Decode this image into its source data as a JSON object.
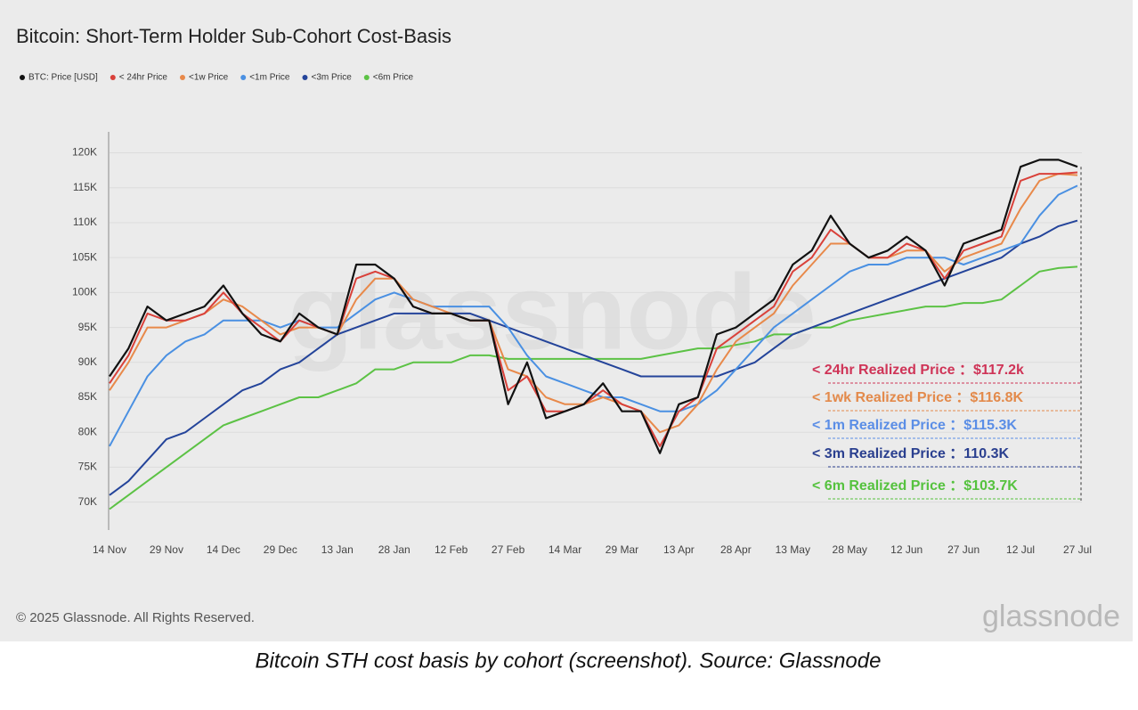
{
  "chart_data": {
    "type": "line",
    "title": "Bitcoin: Short-Term Holder Sub-Cohort Cost-Basis",
    "categories": [
      "14 Nov",
      null,
      null,
      "29 Nov",
      null,
      null,
      "14 Dec",
      null,
      null,
      "29 Dec",
      null,
      null,
      "13 Jan",
      null,
      null,
      "28 Jan",
      null,
      null,
      "12 Feb",
      null,
      null,
      "27 Feb",
      null,
      null,
      "14 Mar",
      null,
      null,
      "29 Mar",
      null,
      null,
      "13 Apr",
      null,
      null,
      "28 Apr",
      null,
      null,
      "13 May",
      null,
      null,
      "28 May",
      null,
      null,
      "12 Jun",
      null,
      null,
      "27 Jun",
      null,
      null,
      "12 Jul",
      null,
      null,
      "27 Jul"
    ],
    "series": [
      {
        "name": "BTC: Price [USD]",
        "color": "#111111",
        "values": [
          88000,
          92000,
          98000,
          96000,
          97000,
          98000,
          101000,
          97000,
          94000,
          93000,
          97000,
          95000,
          94000,
          104000,
          104000,
          102000,
          98000,
          97000,
          97000,
          96000,
          96000,
          84000,
          90000,
          82000,
          83000,
          84000,
          87000,
          83000,
          83000,
          77000,
          84000,
          85000,
          94000,
          95000,
          97000,
          99000,
          104000,
          106000,
          111000,
          107000,
          105000,
          106000,
          108000,
          106000,
          101000,
          107000,
          108000,
          109000,
          118000,
          119000,
          119000,
          118000
        ]
      },
      {
        "name": "< 24hr Price",
        "color": "#d9413a",
        "values": [
          87000,
          91000,
          97000,
          96000,
          96000,
          97000,
          100000,
          97000,
          95000,
          93000,
          96000,
          95000,
          94000,
          102000,
          103000,
          102000,
          98000,
          97000,
          97000,
          96000,
          96000,
          86000,
          88000,
          83000,
          83000,
          84000,
          86000,
          84000,
          83000,
          78000,
          83000,
          85000,
          92000,
          94000,
          96000,
          98000,
          103000,
          105000,
          109000,
          107000,
          105000,
          105000,
          107000,
          106000,
          102000,
          106000,
          107000,
          108000,
          116000,
          117000,
          117000,
          117200
        ]
      },
      {
        "name": "<1w Price",
        "color": "#e8894a",
        "values": [
          86000,
          90000,
          95000,
          95000,
          96000,
          97000,
          99000,
          98000,
          96000,
          94000,
          95000,
          95000,
          94000,
          99000,
          102000,
          102000,
          99000,
          98000,
          97000,
          96000,
          96000,
          89000,
          88000,
          85000,
          84000,
          84000,
          85000,
          84000,
          83000,
          80000,
          81000,
          84000,
          89000,
          93000,
          95000,
          97000,
          101000,
          104000,
          107000,
          107000,
          105000,
          105000,
          106000,
          106000,
          103000,
          105000,
          106000,
          107000,
          112000,
          116000,
          117000,
          116800
        ]
      },
      {
        "name": "<1m Price",
        "color": "#4a90e2",
        "values": [
          78000,
          83000,
          88000,
          91000,
          93000,
          94000,
          96000,
          96000,
          96000,
          95000,
          96000,
          95000,
          95000,
          97000,
          99000,
          100000,
          99000,
          98000,
          98000,
          98000,
          98000,
          95000,
          91000,
          88000,
          87000,
          86000,
          85000,
          85000,
          84000,
          83000,
          83000,
          84000,
          86000,
          89000,
          92000,
          95000,
          97000,
          99000,
          101000,
          103000,
          104000,
          104000,
          105000,
          105000,
          105000,
          104000,
          105000,
          106000,
          107000,
          111000,
          114000,
          115300
        ]
      },
      {
        "name": "<3m Price",
        "color": "#24449a",
        "values": [
          71000,
          73000,
          76000,
          79000,
          80000,
          82000,
          84000,
          86000,
          87000,
          89000,
          90000,
          92000,
          94000,
          95000,
          96000,
          97000,
          97000,
          97000,
          97000,
          97000,
          96000,
          95000,
          94000,
          93000,
          92000,
          91000,
          90000,
          89000,
          88000,
          88000,
          88000,
          88000,
          88000,
          89000,
          90000,
          92000,
          94000,
          95000,
          96000,
          97000,
          98000,
          99000,
          100000,
          101000,
          102000,
          103000,
          104000,
          105000,
          107000,
          108000,
          109500,
          110300
        ]
      },
      {
        "name": "<6m Price",
        "color": "#5cc245",
        "values": [
          69000,
          71000,
          73000,
          75000,
          77000,
          79000,
          81000,
          82000,
          83000,
          84000,
          85000,
          85000,
          86000,
          87000,
          89000,
          89000,
          90000,
          90000,
          90000,
          91000,
          91000,
          90500,
          90500,
          90500,
          90500,
          90500,
          90500,
          90500,
          90500,
          91000,
          91500,
          92000,
          92000,
          92500,
          93000,
          94000,
          94000,
          95000,
          95000,
          96000,
          96500,
          97000,
          97500,
          98000,
          98000,
          98500,
          98500,
          99000,
          101000,
          103000,
          103500,
          103700
        ]
      }
    ],
    "ylim": [
      66000,
      123000
    ],
    "yticks": [
      {
        "value": 70000,
        "label": "70K"
      },
      {
        "value": 75000,
        "label": "75K"
      },
      {
        "value": 80000,
        "label": "80K"
      },
      {
        "value": 85000,
        "label": "85K"
      },
      {
        "value": 90000,
        "label": "90K"
      },
      {
        "value": 95000,
        "label": "95K"
      },
      {
        "value": 100000,
        "label": "100K"
      },
      {
        "value": 105000,
        "label": "105K"
      },
      {
        "value": 110000,
        "label": "110K"
      },
      {
        "value": 115000,
        "label": "115K"
      },
      {
        "value": 120000,
        "label": "120K"
      }
    ],
    "grid": true,
    "legend": "top-left",
    "annotations": [
      {
        "text": "< 24hr Realized Price ：$117.2k",
        "color": "#cf3457"
      },
      {
        "text": "<  1wk Realized Price ：$116.8K",
        "color": "#e38a4b"
      },
      {
        "text": "< 1m Realized Price ：$115.3K",
        "color": "#5b8ee6"
      },
      {
        "text": "< 3m Realized Price ：110.3K",
        "color": "#2a3f8f"
      },
      {
        "text": "< 6m Realized Price ：$103.7K",
        "color": "#55c23e"
      }
    ]
  },
  "watermark": "glassnode",
  "copyright": "© 2025 Glassnode. All Rights Reserved.",
  "logo": "glassnode",
  "caption": "Bitcoin STH cost basis by cohort (screenshot). Source: Glassnode"
}
